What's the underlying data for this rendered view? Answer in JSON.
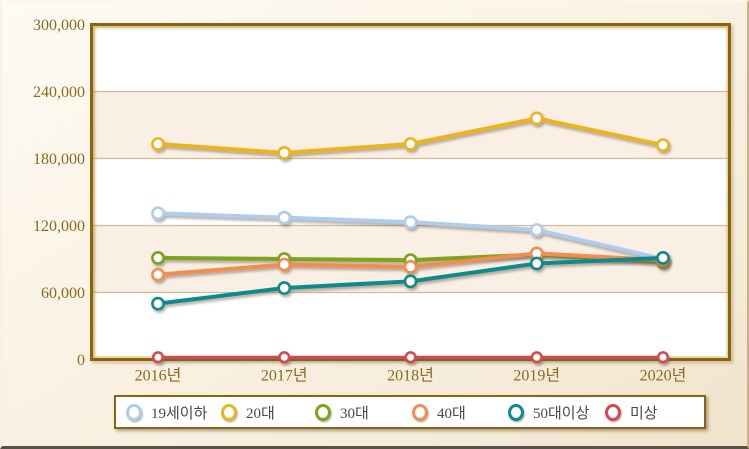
{
  "chart_data": {
    "type": "line",
    "categories": [
      "2016년",
      "2017년",
      "2018년",
      "2019년",
      "2020년"
    ],
    "series": [
      {
        "key": "age-under19",
        "name": "19세이하",
        "color": "#aecdec",
        "values": [
          131000,
          127000,
          123000,
          116000,
          90000
        ]
      },
      {
        "key": "age-20s",
        "name": "20대",
        "color": "#eab51f",
        "values": [
          193000,
          185000,
          193000,
          216000,
          192000
        ]
      },
      {
        "key": "age-30s",
        "name": "30대",
        "color": "#7aa51b",
        "values": [
          91000,
          90000,
          89000,
          94000,
          87000
        ]
      },
      {
        "key": "age-40s",
        "name": "40대",
        "color": "#f08d4f",
        "values": [
          76000,
          85000,
          83000,
          95000,
          89000
        ]
      },
      {
        "key": "age-50plus",
        "name": "50대이상",
        "color": "#108a8d",
        "values": [
          50000,
          64000,
          70000,
          86000,
          91000
        ]
      },
      {
        "key": "age-unknown",
        "name": "미상",
        "color": "#d6484f",
        "values": [
          2000,
          2000,
          2000,
          2000,
          2000
        ]
      }
    ],
    "title": "",
    "xlabel": "",
    "ylabel": "",
    "ylim": [
      0,
      300000
    ],
    "ytick_step": 60000,
    "ytick_labels": [
      "0",
      "60,000",
      "120,000",
      "180,000",
      "240,000",
      "300,000"
    ],
    "grid": true,
    "legend_position": "bottom"
  },
  "style_colors": {
    "axis_label": "#8a6a1e",
    "plot_border": "#8a6410",
    "plot_border_inner": "#cfa62d",
    "gridline": "#d2bc92",
    "band_light": "#ffffff",
    "band_tint": "#faefe4",
    "legend_text": "#4a4a40"
  }
}
